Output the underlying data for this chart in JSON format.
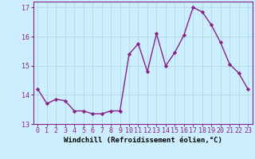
{
  "x": [
    0,
    1,
    2,
    3,
    4,
    5,
    6,
    7,
    8,
    9,
    10,
    11,
    12,
    13,
    14,
    15,
    16,
    17,
    18,
    19,
    20,
    21,
    22,
    23
  ],
  "y": [
    14.2,
    13.7,
    13.85,
    13.8,
    13.45,
    13.45,
    13.35,
    13.35,
    13.45,
    13.45,
    15.4,
    15.75,
    14.8,
    16.1,
    15.0,
    15.45,
    16.05,
    17.0,
    16.85,
    16.4,
    15.8,
    15.05,
    14.75,
    14.2
  ],
  "line_color": "#882288",
  "marker": "D",
  "marker_size": 2.2,
  "bg_color": "#cceeff",
  "grid_color": "#aadddd",
  "xlabel": "Windchill (Refroidissement éolien,°C)",
  "ylim": [
    13.0,
    17.2
  ],
  "xlim": [
    -0.5,
    23.5
  ],
  "yticks": [
    13,
    14,
    15,
    16,
    17
  ],
  "xticks": [
    0,
    1,
    2,
    3,
    4,
    5,
    6,
    7,
    8,
    9,
    10,
    11,
    12,
    13,
    14,
    15,
    16,
    17,
    18,
    19,
    20,
    21,
    22,
    23
  ],
  "xlabel_fontsize": 6.5,
  "tick_fontsize": 6.0,
  "line_width": 1.0
}
